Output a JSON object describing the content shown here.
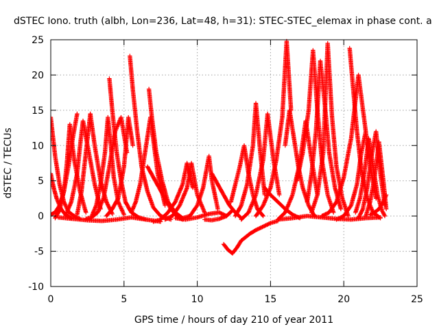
{
  "chart_data": {
    "type": "scatter",
    "title": "dSTEC Iono. truth (albh, Lon=236, Lat=48, h=31): STEC-STEC_elemax in phase cont. a",
    "xlabel": "GPS time / hours of day 210 of year 2011",
    "ylabel": "dSTEC  / TECUs",
    "xlim": [
      0,
      25
    ],
    "ylim": [
      -10,
      25
    ],
    "xticks": [
      0,
      5,
      10,
      15,
      20,
      25
    ],
    "yticks": [
      -10,
      -5,
      0,
      5,
      10,
      15,
      20,
      25
    ],
    "grid": true,
    "marker": "plus",
    "color": "#ff0000",
    "series": [
      {
        "x": [
          0.0,
          0.3,
          0.6,
          0.9,
          1.2,
          1.6,
          2.0
        ],
        "y": [
          14.0,
          8.5,
          4.5,
          2.0,
          0.6,
          0.0,
          -0.4
        ]
      },
      {
        "x": [
          0.0,
          0.2,
          0.4,
          0.7,
          1.0,
          1.4
        ],
        "y": [
          6.0,
          4.0,
          2.5,
          1.0,
          0.2,
          -0.3
        ]
      },
      {
        "x": [
          0.0,
          0.3,
          0.6,
          0.9,
          1.2,
          1.5,
          1.8
        ],
        "y": [
          0.2,
          0.5,
          1.5,
          3.5,
          7.0,
          11.0,
          14.5
        ]
      },
      {
        "x": [
          0.3,
          0.6,
          0.9,
          1.1,
          1.3,
          1.6,
          2.0,
          2.4
        ],
        "y": [
          -0.3,
          0.8,
          3.5,
          7.5,
          13.0,
          8.0,
          3.5,
          0.5
        ]
      },
      {
        "x": [
          1.0,
          1.4,
          1.8,
          2.0,
          2.2,
          2.6,
          3.0,
          3.4
        ],
        "y": [
          0.0,
          2.0,
          6.0,
          10.0,
          13.5,
          9.0,
          4.5,
          1.0
        ]
      },
      {
        "x": [
          1.8,
          2.1,
          2.4,
          2.7,
          3.0,
          3.4,
          3.8,
          4.2
        ],
        "y": [
          0.2,
          3.5,
          9.0,
          14.5,
          10.0,
          5.0,
          2.0,
          0.3
        ]
      },
      {
        "x": [
          2.8,
          3.1,
          3.4,
          3.7,
          3.9,
          4.1,
          4.3,
          4.6,
          5.0
        ],
        "y": [
          0.0,
          1.5,
          4.5,
          9.0,
          14.0,
          10.0,
          5.5,
          2.0,
          0.2
        ]
      },
      {
        "x": [
          2.4,
          2.8,
          3.2,
          3.6,
          4.0,
          4.4,
          4.8,
          5.2
        ],
        "y": [
          -0.4,
          -0.2,
          0.5,
          2.5,
          7.0,
          12.0,
          14.0,
          9.0
        ]
      },
      {
        "x": [
          4.0,
          4.2,
          4.5,
          4.8,
          5.1,
          5.5,
          6.0,
          6.5
        ],
        "y": [
          19.5,
          15.0,
          9.0,
          5.0,
          2.0,
          0.5,
          -0.2,
          -0.5
        ]
      },
      {
        "x": [
          3.8,
          4.2,
          4.6,
          5.0,
          5.3,
          5.6
        ],
        "y": [
          0.0,
          1.0,
          2.5,
          7.0,
          14.0,
          10.0
        ]
      },
      {
        "x": [
          5.4,
          5.6,
          5.9,
          6.2,
          6.6,
          7.0,
          7.5,
          8.2
        ],
        "y": [
          22.7,
          18.0,
          12.0,
          7.0,
          3.5,
          1.2,
          0.0,
          -0.5
        ]
      },
      {
        "x": [
          5.5,
          5.8,
          6.1,
          6.4,
          6.8,
          7.3,
          7.8
        ],
        "y": [
          0.5,
          2.0,
          4.5,
          8.5,
          14.0,
          6.0,
          1.5
        ]
      },
      {
        "x": [
          6.7,
          6.9,
          7.2,
          7.6,
          8.0,
          8.5,
          9.0
        ],
        "y": [
          18.0,
          14.0,
          9.0,
          5.0,
          2.0,
          0.5,
          -0.3
        ]
      },
      {
        "x": [
          6.6,
          7.0,
          7.4,
          7.8,
          8.2,
          8.6,
          9.0
        ],
        "y": [
          7.0,
          5.5,
          4.0,
          2.5,
          1.0,
          0.0,
          -0.5
        ]
      },
      {
        "x": [
          7.0,
          7.5,
          8.0,
          8.5,
          9.0,
          9.3,
          9.7
        ],
        "y": [
          -0.8,
          -0.5,
          0.5,
          2.0,
          4.5,
          7.5,
          4.0
        ]
      },
      {
        "x": [
          7.8,
          8.3,
          8.8,
          9.3,
          9.6,
          10.0,
          10.5
        ],
        "y": [
          -0.5,
          0.0,
          1.5,
          4.0,
          7.5,
          3.0,
          0.5
        ]
      },
      {
        "x": [
          9.0,
          9.5,
          10.0,
          10.4,
          10.8,
          11.0,
          11.4
        ],
        "y": [
          -0.3,
          0.0,
          1.5,
          4.0,
          8.5,
          5.0,
          1.0
        ]
      },
      {
        "x": [
          8.5,
          9.2,
          10.0,
          10.8,
          11.5,
          12.0
        ],
        "y": [
          -0.3,
          -0.5,
          -0.2,
          0.3,
          0.5,
          0.0
        ]
      },
      {
        "x": [
          11.0,
          11.4,
          11.8,
          12.2,
          12.6,
          13.0
        ],
        "y": [
          6.0,
          4.5,
          3.0,
          1.5,
          0.5,
          -0.3
        ]
      },
      {
        "x": [
          10.5,
          11.0,
          11.5,
          12.0,
          12.4
        ],
        "y": [
          -0.5,
          -0.6,
          -0.4,
          0.0,
          0.8
        ]
      },
      {
        "x": [
          11.8,
          12.1,
          12.4,
          12.7,
          13.0,
          13.3,
          13.6,
          14.0,
          14.5,
          15.0,
          15.5
        ],
        "y": [
          -4.0,
          -4.8,
          -5.3,
          -4.5,
          -3.5,
          -3.0,
          -2.5,
          -2.0,
          -1.5,
          -1.0,
          -0.7
        ]
      },
      {
        "x": [
          12.3,
          12.6,
          12.9,
          13.2,
          13.5,
          13.8,
          14.1,
          14.5
        ],
        "y": [
          2.0,
          4.5,
          7.0,
          10.0,
          6.0,
          3.0,
          1.0,
          0.0
        ]
      },
      {
        "x": [
          12.6,
          13.0,
          13.4,
          13.8,
          14.0,
          14.3,
          14.6
        ],
        "y": [
          0.0,
          1.5,
          4.5,
          10.0,
          16.0,
          9.0,
          3.0
        ]
      },
      {
        "x": [
          13.0,
          13.5,
          14.0,
          14.5,
          14.8,
          15.2,
          15.6
        ],
        "y": [
          -0.5,
          0.5,
          3.0,
          8.0,
          14.5,
          8.0,
          3.0
        ]
      },
      {
        "x": [
          14.0,
          14.5,
          15.0,
          15.4,
          15.8,
          16.1,
          16.4
        ],
        "y": [
          0.0,
          1.5,
          4.0,
          8.0,
          14.0,
          24.8,
          15.0
        ]
      },
      {
        "x": [
          14.6,
          15.0,
          15.5,
          16.0,
          16.5,
          17.0
        ],
        "y": [
          4.0,
          3.0,
          2.0,
          1.0,
          0.2,
          -0.3
        ]
      },
      {
        "x": [
          16.0,
          16.3,
          16.6,
          16.9,
          17.2,
          17.6,
          18.0
        ],
        "y": [
          10.0,
          15.0,
          11.0,
          7.0,
          4.0,
          1.5,
          0.0
        ]
      },
      {
        "x": [
          15.5,
          16.0,
          16.5,
          17.0,
          17.4,
          17.8,
          18.2
        ],
        "y": [
          -0.5,
          0.5,
          3.0,
          7.5,
          13.5,
          8.0,
          3.0
        ]
      },
      {
        "x": [
          16.8,
          17.2,
          17.6,
          17.9,
          18.2,
          18.5,
          18.9,
          19.3
        ],
        "y": [
          5.0,
          9.0,
          15.0,
          23.5,
          15.0,
          8.0,
          3.0,
          0.5
        ]
      },
      {
        "x": [
          17.5,
          17.8,
          18.1,
          18.4,
          18.7,
          19.0,
          19.4,
          19.8
        ],
        "y": [
          2.0,
          6.0,
          12.0,
          22.0,
          16.0,
          9.0,
          4.0,
          1.0
        ]
      },
      {
        "x": [
          17.8,
          18.2,
          18.6,
          18.9,
          19.2,
          19.5,
          19.9,
          20.3
        ],
        "y": [
          0.5,
          3.0,
          9.0,
          24.5,
          14.0,
          7.0,
          2.5,
          0.0
        ]
      },
      {
        "x": [
          18.5,
          19.0,
          19.5,
          20.0,
          20.5,
          21.0,
          21.5
        ],
        "y": [
          0.0,
          0.5,
          2.0,
          5.5,
          11.0,
          20.0,
          12.0
        ]
      },
      {
        "x": [
          20.4,
          20.6,
          20.9,
          21.2,
          21.6,
          22.0,
          22.5
        ],
        "y": [
          23.8,
          19.0,
          12.0,
          6.5,
          2.5,
          0.5,
          -0.3
        ]
      },
      {
        "x": [
          19.5,
          20.0,
          20.5,
          20.9,
          21.2,
          21.5,
          21.8,
          22.2
        ],
        "y": [
          -0.5,
          0.0,
          1.5,
          4.5,
          9.0,
          12.0,
          7.0,
          2.5
        ]
      },
      {
        "x": [
          20.8,
          21.1,
          21.4,
          21.7,
          22.0,
          22.3,
          22.6,
          22.8
        ],
        "y": [
          0.5,
          2.5,
          6.0,
          11.0,
          7.0,
          3.0,
          0.8,
          0.0
        ]
      },
      {
        "x": [
          21.0,
          21.3,
          21.6,
          21.9,
          22.2,
          22.5,
          22.8
        ],
        "y": [
          -0.3,
          1.0,
          4.0,
          8.5,
          12.0,
          6.0,
          1.5
        ]
      },
      {
        "x": [
          21.5,
          21.8,
          22.1,
          22.4,
          22.7,
          22.9
        ],
        "y": [
          0.0,
          2.0,
          5.5,
          10.5,
          5.0,
          1.0
        ]
      },
      {
        "x": [
          21.8,
          22.1,
          22.4,
          22.7,
          22.9
        ],
        "y": [
          0.2,
          0.5,
          1.0,
          2.0,
          3.0
        ]
      },
      {
        "x": [
          0.5,
          1.5,
          2.5,
          3.5,
          4.5,
          5.5,
          6.5,
          7.5
        ],
        "y": [
          -0.2,
          -0.4,
          -0.6,
          -0.7,
          -0.5,
          -0.2,
          -0.5,
          -0.8
        ]
      },
      {
        "x": [
          15.5,
          16.5,
          17.5,
          18.5,
          19.5,
          20.5,
          21.5,
          22.5
        ],
        "y": [
          -0.5,
          -0.3,
          0.0,
          -0.2,
          -0.4,
          -0.5,
          -0.3,
          -0.2
        ]
      }
    ]
  }
}
